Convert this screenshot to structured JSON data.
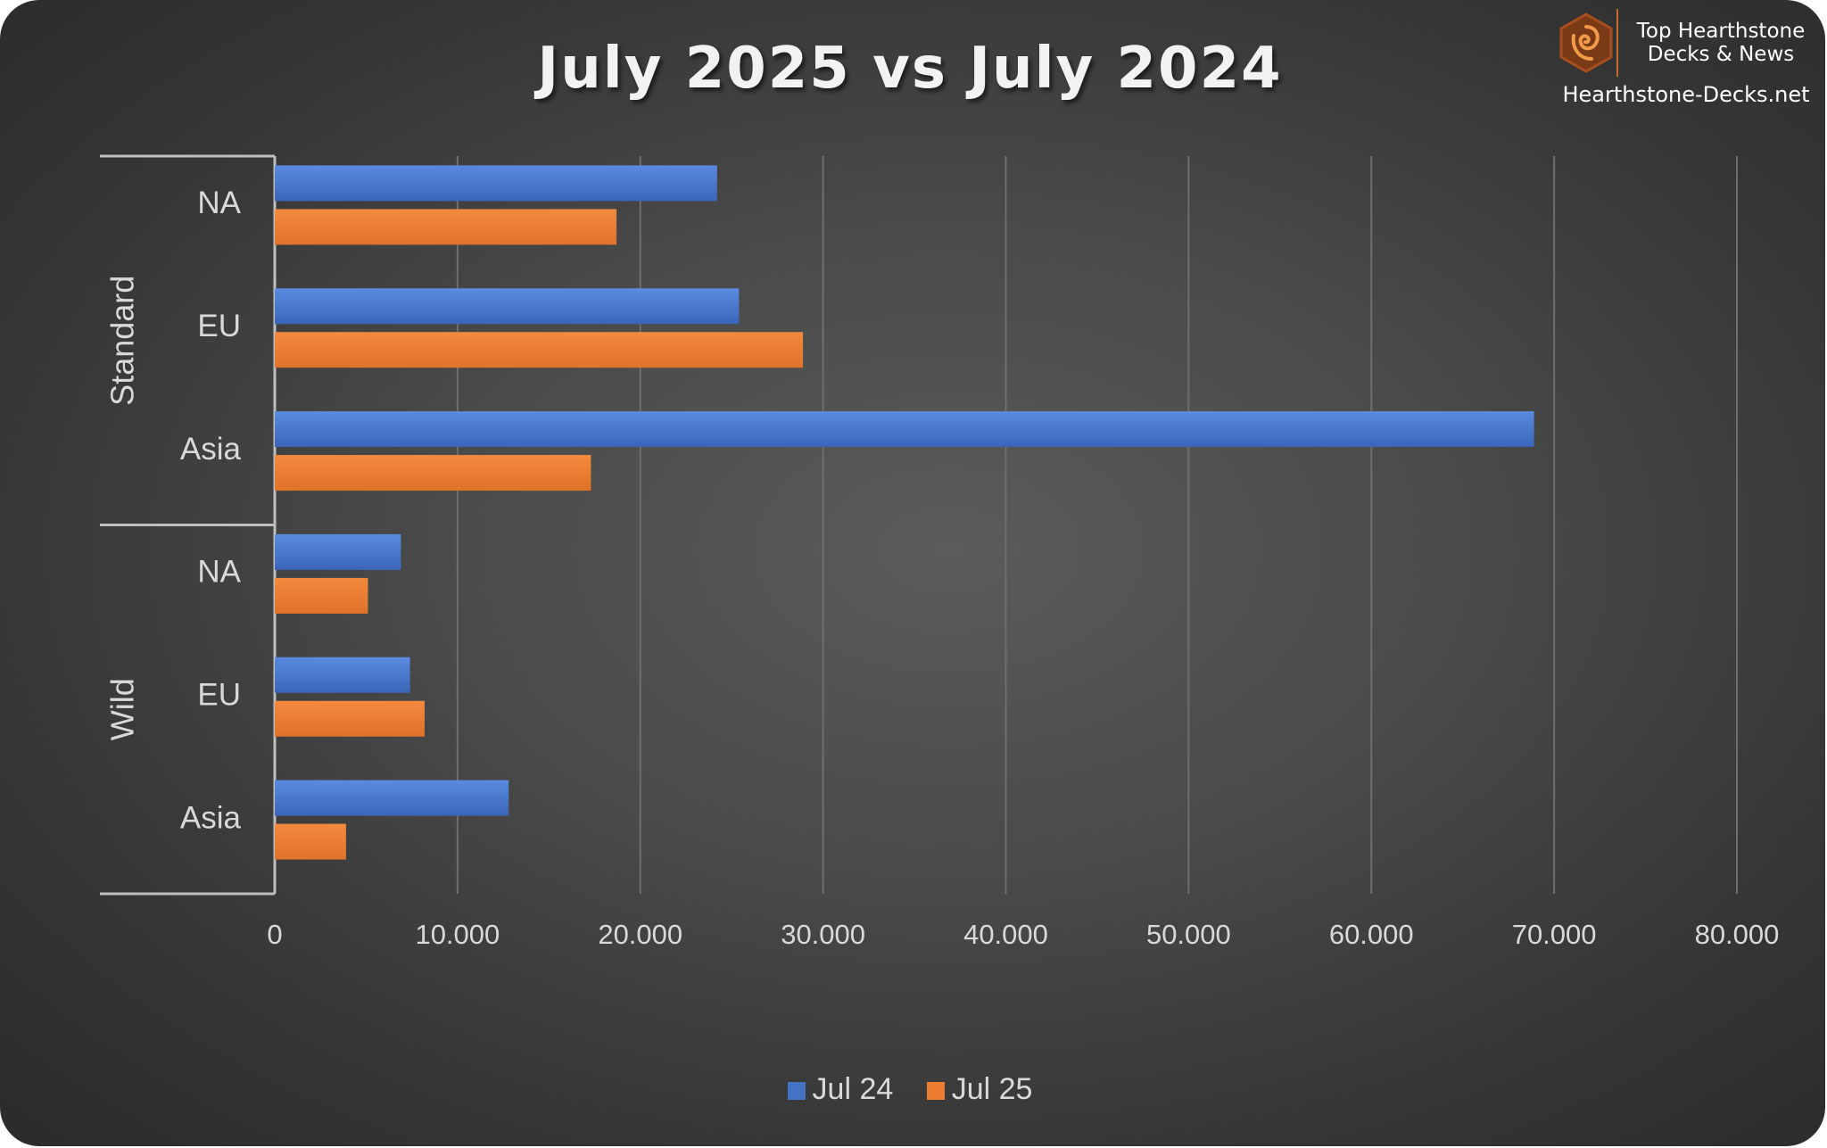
{
  "chart_data": {
    "type": "bar",
    "orientation": "horizontal",
    "title": "July 2025 vs July 2024",
    "groups": [
      {
        "name": "Standard",
        "categories": [
          "NA",
          "EU",
          "Asia"
        ]
      },
      {
        "name": "Wild",
        "categories": [
          "NA",
          "EU",
          "Asia"
        ]
      }
    ],
    "series": [
      {
        "name": "Jul 24",
        "color": "#4472C4",
        "values": [
          24200,
          25400,
          68900,
          6900,
          7400,
          12800
        ]
      },
      {
        "name": "Jul 25",
        "color": "#ED7D31",
        "values": [
          18700,
          28900,
          17300,
          5100,
          8200,
          3900
        ]
      }
    ],
    "xlim": [
      0,
      80000
    ],
    "xticks": [
      "0",
      "10.000",
      "20.000",
      "30.000",
      "40.000",
      "50.000",
      "60.000",
      "70.000",
      "80.000"
    ],
    "grid": true,
    "legend_position": "bottom"
  },
  "branding": {
    "line1": "Top Hearthstone",
    "line2": "Decks & News",
    "site": "Hearthstone-Decks.net",
    "icon": "hearthstone-logo-icon"
  }
}
